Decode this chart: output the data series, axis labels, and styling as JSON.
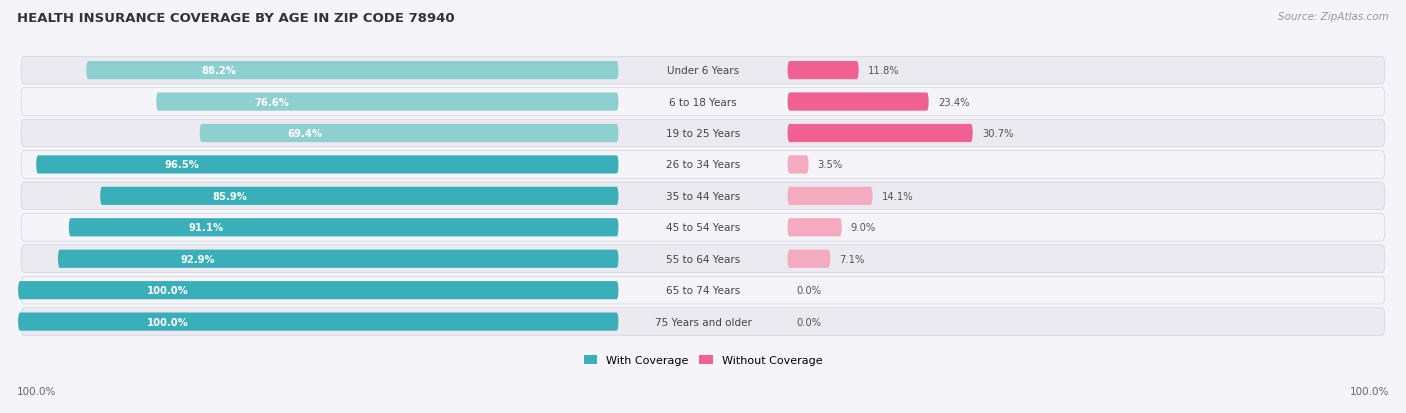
{
  "title": "HEALTH INSURANCE COVERAGE BY AGE IN ZIP CODE 78940",
  "source": "Source: ZipAtlas.com",
  "categories": [
    "Under 6 Years",
    "6 to 18 Years",
    "19 to 25 Years",
    "26 to 34 Years",
    "35 to 44 Years",
    "45 to 54 Years",
    "55 to 64 Years",
    "65 to 74 Years",
    "75 Years and older"
  ],
  "with_coverage": [
    88.2,
    76.6,
    69.4,
    96.5,
    85.9,
    91.1,
    92.9,
    100.0,
    100.0
  ],
  "without_coverage": [
    11.8,
    23.4,
    30.7,
    3.5,
    14.1,
    9.0,
    7.1,
    0.0,
    0.0
  ],
  "coverage_colors": [
    "#8ECFCF",
    "#8ECFCF",
    "#8ECFCF",
    "#3AAFB9",
    "#3AAFB9",
    "#3AAFB9",
    "#3AAFB9",
    "#3AAFB9",
    "#3AAFB9"
  ],
  "no_cov_colors": [
    "#F06090",
    "#F06090",
    "#F06090",
    "#F4AABF",
    "#F4AABF",
    "#F4AABF",
    "#F4AABF",
    "#F4AABF",
    "#F4AABF"
  ],
  "color_coverage": "#3AAFB9",
  "color_no_coverage": "#F06090",
  "row_bg_odd": "#EAEAF0",
  "row_bg_even": "#F4F4F9",
  "fig_bg": "#F4F4F9",
  "legend_coverage": "With Coverage",
  "legend_no_coverage": "Without Coverage",
  "figsize": [
    14.06,
    4.14
  ],
  "dpi": 100
}
